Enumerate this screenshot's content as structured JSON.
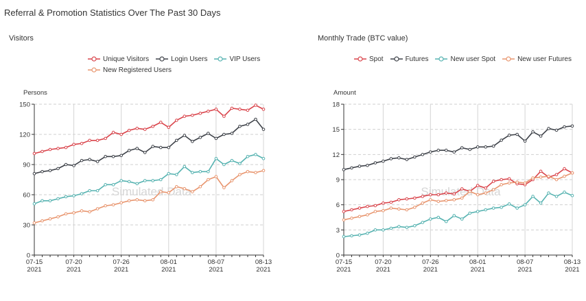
{
  "page_title": "Referral & Promotion Statistics Over The Past 30 Days",
  "chart_data": [
    {
      "type": "line",
      "title": "Visitors",
      "ylabel": "Persons",
      "xlabel": "",
      "ylim": [
        0,
        150
      ],
      "yticks": [
        0,
        30,
        60,
        90,
        120,
        150
      ],
      "x": [
        "07-15",
        "07-16",
        "07-17",
        "07-18",
        "07-19",
        "07-20",
        "07-21",
        "07-22",
        "07-23",
        "07-24",
        "07-25",
        "07-26",
        "07-27",
        "07-28",
        "07-29",
        "07-30",
        "07-31",
        "08-01",
        "08-02",
        "08-03",
        "08-04",
        "08-05",
        "08-06",
        "08-07",
        "08-08",
        "08-09",
        "08-10",
        "08-11",
        "08-12",
        "08-13"
      ],
      "xtick_labels": [
        [
          "07-15",
          "2021"
        ],
        [
          "07-20",
          "2021"
        ],
        [
          "07-26",
          "2021"
        ],
        [
          "08-01",
          "2021"
        ],
        [
          "08-07",
          "2021"
        ],
        [
          "08-13",
          "2021"
        ]
      ],
      "xtick_index": [
        0,
        5,
        11,
        17,
        23,
        29
      ],
      "watermark": "Simulated Data",
      "grid": true,
      "legend_position": "top",
      "legend_rows": [
        [
          0,
          1,
          2
        ],
        [
          3
        ]
      ],
      "series": [
        {
          "name": "Unique Visitors",
          "color": "#d9434a",
          "values": [
            101,
            103,
            105,
            106,
            107,
            110,
            111,
            114,
            114,
            116,
            122,
            120,
            124,
            126,
            125,
            128,
            132,
            127,
            134,
            138,
            139,
            141,
            143,
            145,
            138,
            146,
            145,
            144,
            149,
            145
          ]
        },
        {
          "name": "Login Users",
          "color": "#3d4148",
          "values": [
            81,
            83,
            84,
            86,
            90,
            89,
            94,
            95,
            93,
            98,
            98,
            99,
            104,
            106,
            102,
            108,
            107,
            107,
            114,
            119,
            113,
            117,
            121,
            116,
            120,
            121,
            128,
            130,
            135,
            125
          ]
        },
        {
          "name": "VIP Users",
          "color": "#55b2b0",
          "values": [
            51,
            54,
            54,
            56,
            58,
            59,
            61,
            64,
            64,
            70,
            70,
            74,
            73,
            71,
            74,
            74,
            75,
            81,
            80,
            88,
            82,
            83,
            83,
            96,
            90,
            94,
            91,
            98,
            100,
            96
          ]
        },
        {
          "name": "New Registered Users",
          "color": "#e8956e",
          "values": [
            32,
            34,
            36,
            38,
            41,
            42,
            44,
            43,
            46,
            49,
            50,
            52,
            54,
            55,
            54,
            55,
            63,
            62,
            68,
            66,
            63,
            68,
            75,
            78,
            67,
            74,
            80,
            83,
            82,
            84
          ]
        }
      ]
    },
    {
      "type": "line",
      "title": "Monthly Trade (BTC value)",
      "ylabel": "Amount",
      "xlabel": "",
      "ylim": [
        0,
        18
      ],
      "yticks": [
        0,
        3,
        6,
        9,
        12,
        15,
        18
      ],
      "x": [
        "07-15",
        "07-16",
        "07-17",
        "07-18",
        "07-19",
        "07-20",
        "07-21",
        "07-22",
        "07-23",
        "07-24",
        "07-25",
        "07-26",
        "07-27",
        "07-28",
        "07-29",
        "07-30",
        "07-31",
        "08-01",
        "08-02",
        "08-03",
        "08-04",
        "08-05",
        "08-06",
        "08-07",
        "08-08",
        "08-09",
        "08-10",
        "08-11",
        "08-12",
        "08-13"
      ],
      "xtick_labels": [
        [
          "07-15",
          "2021"
        ],
        [
          "07-20",
          "2021"
        ],
        [
          "07-26",
          "2021"
        ],
        [
          "08-01",
          "2021"
        ],
        [
          "08-07",
          "2021"
        ],
        [
          "08-13",
          "2021"
        ]
      ],
      "xtick_index": [
        0,
        5,
        11,
        17,
        23,
        29
      ],
      "watermark": "Simulated Data",
      "grid": true,
      "legend_position": "top",
      "legend_rows": [
        [
          0,
          1,
          2,
          3
        ]
      ],
      "series": [
        {
          "name": "Spot",
          "color": "#d9434a",
          "values": [
            5.2,
            5.4,
            5.6,
            5.8,
            5.9,
            6.2,
            6.3,
            6.6,
            6.7,
            6.8,
            7.0,
            7.2,
            7.2,
            7.4,
            7.3,
            7.9,
            7.6,
            8.3,
            8.0,
            8.8,
            9.0,
            9.1,
            8.5,
            8.4,
            9.0,
            10.0,
            9.3,
            9.6,
            10.3,
            9.8
          ]
        },
        {
          "name": "Futures",
          "color": "#3d4148",
          "values": [
            10.2,
            10.4,
            10.6,
            10.7,
            11.0,
            11.2,
            11.5,
            11.6,
            11.4,
            11.7,
            12.0,
            12.3,
            12.5,
            12.5,
            12.3,
            12.8,
            12.6,
            12.9,
            12.9,
            13.0,
            13.7,
            14.3,
            14.4,
            13.6,
            14.7,
            14.2,
            15.1,
            14.9,
            15.3,
            15.4
          ]
        },
        {
          "name": "New user Spot",
          "color": "#55b2b0",
          "values": [
            2.2,
            2.3,
            2.4,
            2.6,
            3.0,
            3.0,
            3.2,
            3.4,
            3.3,
            3.5,
            3.9,
            4.3,
            4.5,
            4.0,
            4.7,
            4.3,
            5.0,
            5.2,
            5.4,
            5.6,
            5.7,
            6.1,
            5.6,
            6.0,
            7.0,
            6.2,
            7.4,
            7.0,
            7.5,
            7.1
          ]
        },
        {
          "name": "New user Futures",
          "color": "#e8956e",
          "values": [
            4.2,
            4.4,
            4.6,
            4.8,
            5.2,
            5.3,
            5.6,
            5.5,
            5.4,
            5.7,
            6.2,
            6.6,
            6.4,
            6.5,
            6.6,
            6.8,
            7.6,
            7.2,
            7.4,
            7.8,
            8.4,
            8.6,
            8.7,
            8.6,
            9.2,
            9.3,
            9.4,
            9.0,
            9.4,
            9.8
          ]
        }
      ]
    }
  ]
}
